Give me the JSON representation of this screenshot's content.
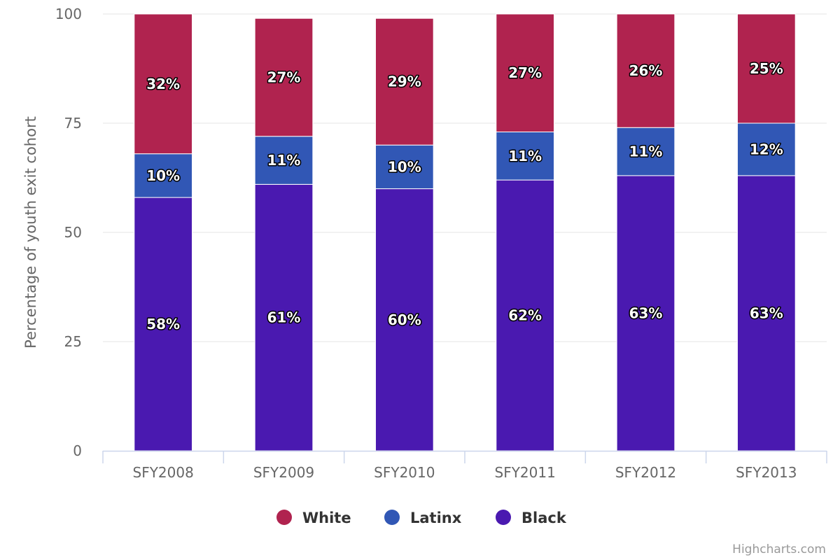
{
  "chart_data": {
    "type": "bar",
    "stacked": true,
    "categories": [
      "SFY2008",
      "SFY2009",
      "SFY2010",
      "SFY2011",
      "SFY2012",
      "SFY2013"
    ],
    "series": [
      {
        "name": "Black",
        "color": "#4a19b0",
        "values": [
          58,
          61,
          60,
          62,
          63,
          63
        ]
      },
      {
        "name": "Latinx",
        "color": "#3157b5",
        "values": [
          10,
          11,
          10,
          11,
          11,
          12
        ]
      },
      {
        "name": "White",
        "color": "#b0234f",
        "values": [
          32,
          27,
          29,
          27,
          26,
          25
        ]
      }
    ],
    "data_labels": [
      [
        "58%",
        "61%",
        "60%",
        "62%",
        "63%",
        "63%"
      ],
      [
        "10%",
        "11%",
        "10%",
        "11%",
        "11%",
        "12%"
      ],
      [
        "32%",
        "27%",
        "29%",
        "27%",
        "26%",
        "25%"
      ]
    ],
    "title": "",
    "xlabel": "",
    "ylabel": "Percentage of youth exit cohort",
    "ylim": [
      0,
      100
    ],
    "yticks": [
      0,
      25,
      50,
      75,
      100
    ],
    "grid": true,
    "legend": {
      "position": "bottom-center",
      "items": [
        {
          "name": "White",
          "color": "#b0234f"
        },
        {
          "name": "Latinx",
          "color": "#3157b5"
        },
        {
          "name": "Black",
          "color": "#4a19b0"
        }
      ]
    }
  },
  "credits": "Highcharts.com"
}
